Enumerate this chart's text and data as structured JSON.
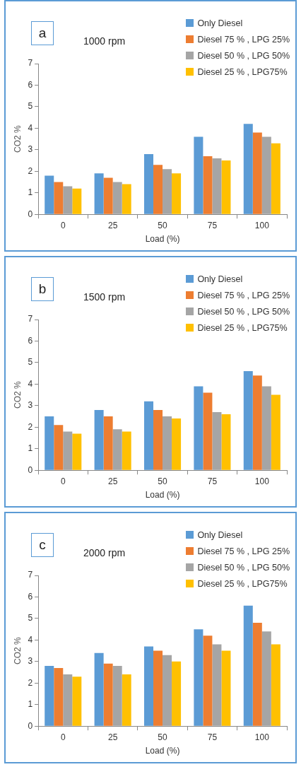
{
  "chart_data": [
    {
      "type": "bar",
      "title": "1000 rpm",
      "xlabel": "Load (%)",
      "ylabel": "CO2 %",
      "annotations": [
        "a"
      ],
      "categories": [
        "0",
        "25",
        "50",
        "75",
        "100"
      ],
      "ylim": [
        0,
        7
      ],
      "yticks": [
        0,
        1,
        2,
        3,
        4,
        5,
        6,
        7
      ],
      "legend": "top right",
      "series": [
        {
          "name": "Only Diesel",
          "color": "#5b9bd5",
          "values": [
            1.8,
            1.9,
            2.8,
            3.6,
            4.2
          ]
        },
        {
          "name": "Diesel 75 % , LPG 25%",
          "color": "#ed7d31",
          "values": [
            1.5,
            1.7,
            2.3,
            2.7,
            3.8
          ]
        },
        {
          "name": "Diesel 50 % , LPG 50%",
          "color": "#a5a5a5",
          "values": [
            1.3,
            1.5,
            2.1,
            2.6,
            3.6
          ]
        },
        {
          "name": "Diesel 25 % , LPG75%",
          "color": "#ffc000",
          "values": [
            1.2,
            1.4,
            1.9,
            2.5,
            3.3
          ]
        }
      ]
    },
    {
      "type": "bar",
      "title": "1500 rpm",
      "xlabel": "Load (%)",
      "ylabel": "CO2 %",
      "annotations": [
        "b"
      ],
      "categories": [
        "0",
        "25",
        "50",
        "75",
        "100"
      ],
      "ylim": [
        0,
        7
      ],
      "yticks": [
        0,
        1,
        2,
        3,
        4,
        5,
        6,
        7
      ],
      "legend": "top right",
      "series": [
        {
          "name": "Only Diesel",
          "color": "#5b9bd5",
          "values": [
            2.5,
            2.8,
            3.2,
            3.9,
            4.6
          ]
        },
        {
          "name": "Diesel 75 % , LPG 25%",
          "color": "#ed7d31",
          "values": [
            2.1,
            2.5,
            2.8,
            3.6,
            4.4
          ]
        },
        {
          "name": "Diesel 50 % , LPG 50%",
          "color": "#a5a5a5",
          "values": [
            1.8,
            1.9,
            2.5,
            2.7,
            3.9
          ]
        },
        {
          "name": "Diesel 25 % , LPG75%",
          "color": "#ffc000",
          "values": [
            1.7,
            1.8,
            2.4,
            2.6,
            3.5
          ]
        }
      ]
    },
    {
      "type": "bar",
      "title": "2000 rpm",
      "xlabel": "Load (%)",
      "ylabel": "CO2 %",
      "annotations": [
        "c"
      ],
      "categories": [
        "0",
        "25",
        "50",
        "75",
        "100"
      ],
      "ylim": [
        0,
        7
      ],
      "yticks": [
        0,
        1,
        2,
        3,
        4,
        5,
        6,
        7
      ],
      "legend": "top right",
      "series": [
        {
          "name": "Only Diesel",
          "color": "#5b9bd5",
          "values": [
            2.8,
            3.4,
            3.7,
            4.5,
            5.6
          ]
        },
        {
          "name": "Diesel 75 % , LPG 25%",
          "color": "#ed7d31",
          "values": [
            2.7,
            2.9,
            3.5,
            4.2,
            4.8
          ]
        },
        {
          "name": "Diesel 50 % , LPG 50%",
          "color": "#a5a5a5",
          "values": [
            2.4,
            2.8,
            3.3,
            3.8,
            4.4
          ]
        },
        {
          "name": "Diesel 25 % , LPG75%",
          "color": "#ffc000",
          "values": [
            2.3,
            2.4,
            3.0,
            3.5,
            3.8
          ]
        }
      ]
    }
  ]
}
